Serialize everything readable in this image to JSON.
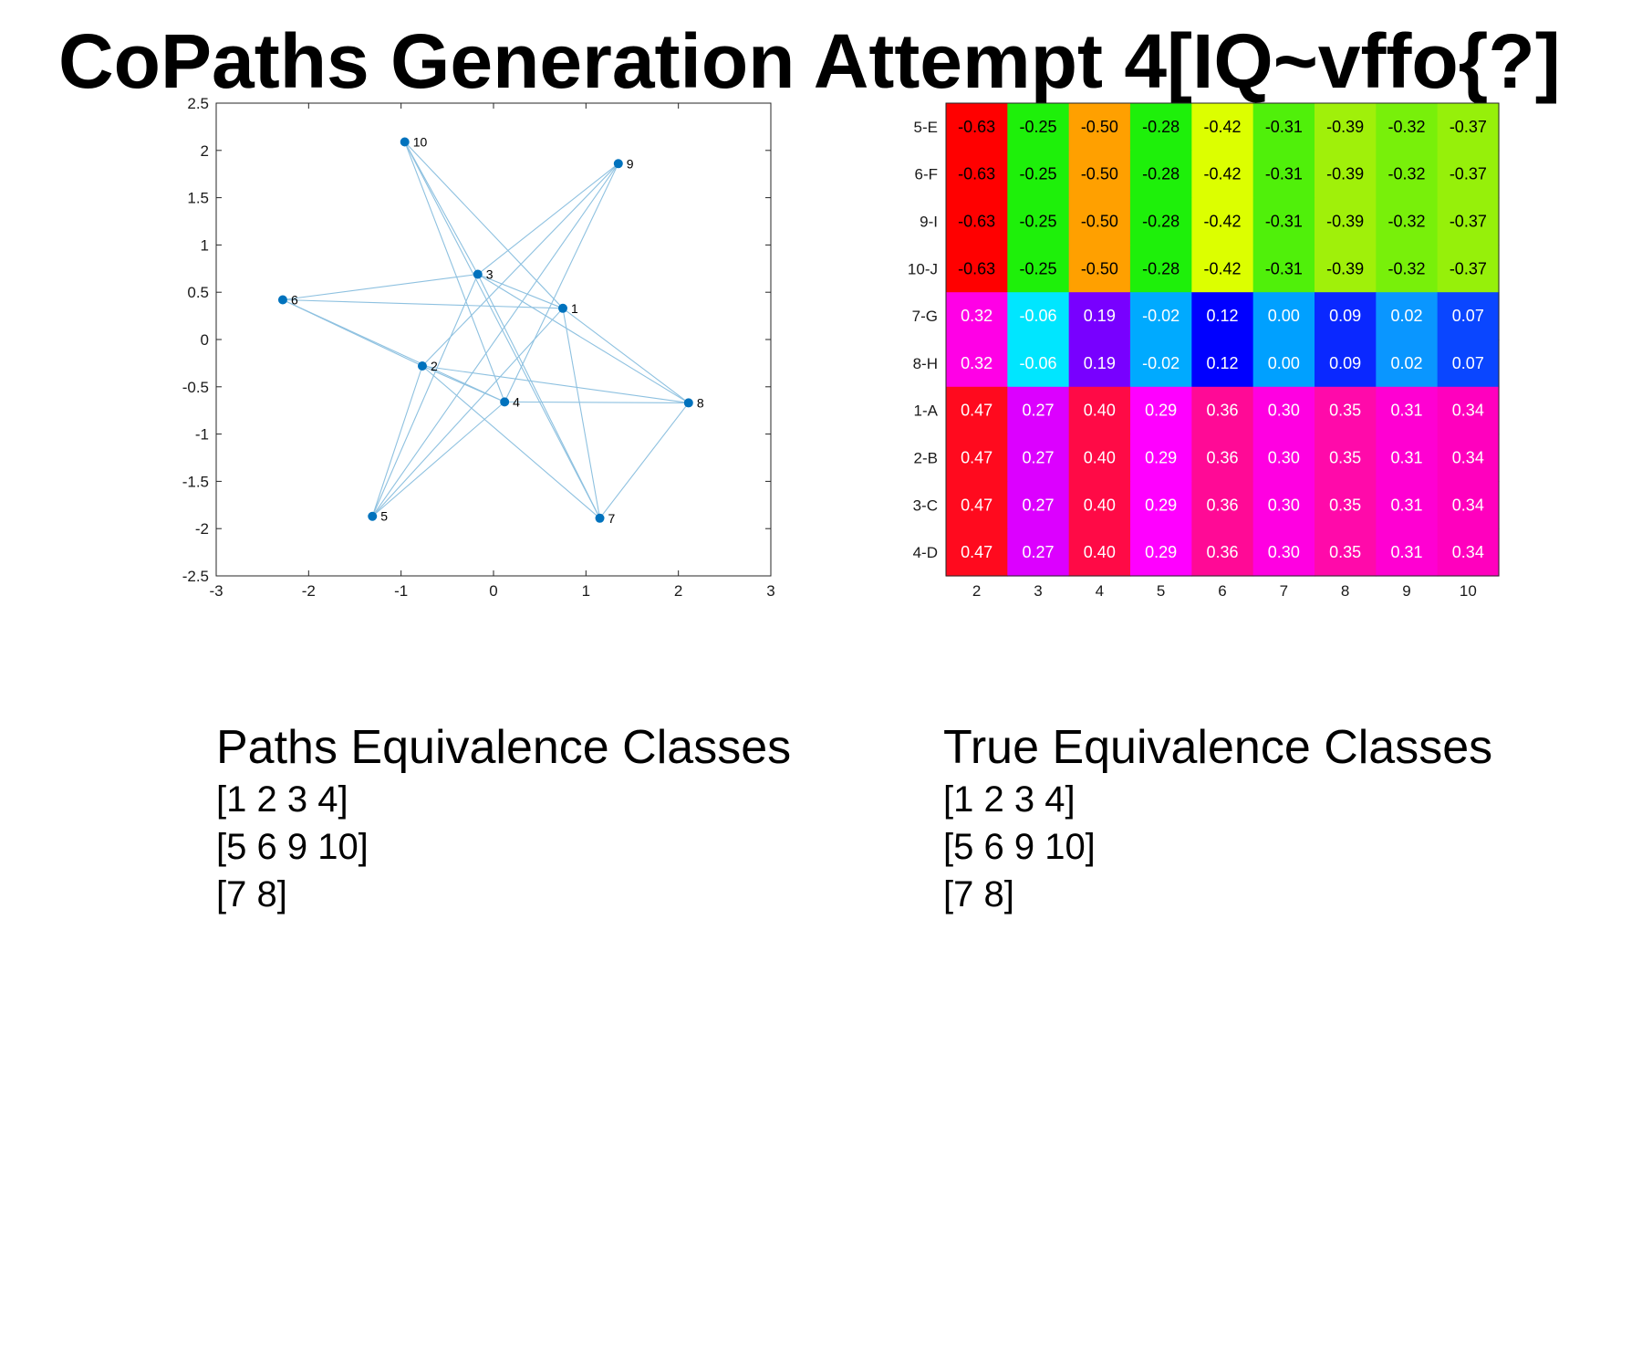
{
  "title": "CoPaths Generation Attempt 4[IQ~vffo{?]",
  "chart_data": [
    {
      "type": "scatter",
      "subtype": "graph",
      "xlim": [
        -3,
        3
      ],
      "ylim": [
        -2.5,
        2.5
      ],
      "xticks": [
        -3,
        -2,
        -1,
        0,
        1,
        2,
        3
      ],
      "yticks": [
        -2.5,
        -2,
        -1.5,
        -1,
        -0.5,
        0,
        0.5,
        1,
        1.5,
        2,
        2.5
      ],
      "node_color": "#0072BD",
      "edge_color": "#8EC1E0",
      "nodes": [
        {
          "id": "1",
          "x": 0.75,
          "y": 0.33
        },
        {
          "id": "2",
          "x": -0.77,
          "y": -0.28
        },
        {
          "id": "3",
          "x": -0.17,
          "y": 0.69
        },
        {
          "id": "4",
          "x": 0.12,
          "y": -0.66
        },
        {
          "id": "5",
          "x": -1.31,
          "y": -1.87
        },
        {
          "id": "6",
          "x": -2.28,
          "y": 0.42
        },
        {
          "id": "7",
          "x": 1.15,
          "y": -1.89
        },
        {
          "id": "8",
          "x": 2.11,
          "y": -0.67
        },
        {
          "id": "9",
          "x": 1.35,
          "y": 1.86
        },
        {
          "id": "10",
          "x": -0.96,
          "y": 2.09
        }
      ],
      "edges": [
        [
          "1",
          "3"
        ],
        [
          "1",
          "6"
        ],
        [
          "1",
          "10"
        ],
        [
          "1",
          "5"
        ],
        [
          "1",
          "8"
        ],
        [
          "1",
          "7"
        ],
        [
          "2",
          "6"
        ],
        [
          "2",
          "4"
        ],
        [
          "2",
          "5"
        ],
        [
          "2",
          "9"
        ],
        [
          "2",
          "8"
        ],
        [
          "2",
          "7"
        ],
        [
          "3",
          "6"
        ],
        [
          "3",
          "10"
        ],
        [
          "3",
          "9"
        ],
        [
          "3",
          "8"
        ],
        [
          "3",
          "7"
        ],
        [
          "3",
          "5"
        ],
        [
          "4",
          "6"
        ],
        [
          "4",
          "10"
        ],
        [
          "4",
          "8"
        ],
        [
          "4",
          "9"
        ],
        [
          "4",
          "5"
        ],
        [
          "7",
          "10"
        ],
        [
          "7",
          "8"
        ],
        [
          "9",
          "5"
        ]
      ]
    },
    {
      "type": "heatmap",
      "rows": [
        "5-E",
        "6-F",
        "9-I",
        "10-J",
        "7-G",
        "8-H",
        "1-A",
        "2-B",
        "3-C",
        "4-D"
      ],
      "columns": [
        "2",
        "3",
        "4",
        "5",
        "6",
        "7",
        "8",
        "9",
        "10"
      ],
      "values": [
        [
          -0.63,
          -0.25,
          -0.5,
          -0.28,
          -0.42,
          -0.31,
          -0.39,
          -0.32,
          -0.37
        ],
        [
          -0.63,
          -0.25,
          -0.5,
          -0.28,
          -0.42,
          -0.31,
          -0.39,
          -0.32,
          -0.37
        ],
        [
          -0.63,
          -0.25,
          -0.5,
          -0.28,
          -0.42,
          -0.31,
          -0.39,
          -0.32,
          -0.37
        ],
        [
          -0.63,
          -0.25,
          -0.5,
          -0.28,
          -0.42,
          -0.31,
          -0.39,
          -0.32,
          -0.37
        ],
        [
          0.32,
          -0.06,
          0.19,
          -0.02,
          0.12,
          0.0,
          0.09,
          0.02,
          0.07
        ],
        [
          0.32,
          -0.06,
          0.19,
          -0.02,
          0.12,
          0.0,
          0.09,
          0.02,
          0.07
        ],
        [
          0.47,
          0.27,
          0.4,
          0.29,
          0.36,
          0.3,
          0.35,
          0.31,
          0.34
        ],
        [
          0.47,
          0.27,
          0.4,
          0.29,
          0.36,
          0.3,
          0.35,
          0.31,
          0.34
        ],
        [
          0.47,
          0.27,
          0.4,
          0.29,
          0.36,
          0.3,
          0.35,
          0.31,
          0.34
        ],
        [
          0.47,
          0.27,
          0.4,
          0.29,
          0.36,
          0.3,
          0.35,
          0.31,
          0.34
        ]
      ],
      "cell_colors": [
        [
          "#FF0000",
          "#1EF00A",
          "#FFA000",
          "#1EF00A",
          "#DCFF00",
          "#50F00A",
          "#A0F00A",
          "#78F00A",
          "#96F00A"
        ],
        [
          "#FF0000",
          "#1EF00A",
          "#FFA000",
          "#1EF00A",
          "#DCFF00",
          "#50F00A",
          "#A0F00A",
          "#78F00A",
          "#96F00A"
        ],
        [
          "#FF0000",
          "#1EF00A",
          "#FFA000",
          "#1EF00A",
          "#DCFF00",
          "#50F00A",
          "#A0F00A",
          "#78F00A",
          "#96F00A"
        ],
        [
          "#FF0000",
          "#1EF00A",
          "#FFA000",
          "#1EF00A",
          "#DCFF00",
          "#50F00A",
          "#A0F00A",
          "#78F00A",
          "#96F00A"
        ],
        [
          "#FF00E6",
          "#00E6FF",
          "#7800FF",
          "#00AAFF",
          "#0000FF",
          "#00A0FF",
          "#0A28FF",
          "#0A96FF",
          "#0A46FF"
        ],
        [
          "#FF00E6",
          "#00E6FF",
          "#7800FF",
          "#00AAFF",
          "#0000FF",
          "#00A0FF",
          "#0A28FF",
          "#0A96FF",
          "#0A46FF"
        ],
        [
          "#FF0A1E",
          "#DC00FF",
          "#FF0A46",
          "#FF00FF",
          "#FF0A96",
          "#FF00E1",
          "#FF0AAA",
          "#FF00D2",
          "#FF00BE"
        ],
        [
          "#FF0A1E",
          "#DC00FF",
          "#FF0A46",
          "#FF00FF",
          "#FF0A96",
          "#FF00E1",
          "#FF0AAA",
          "#FF00D2",
          "#FF00BE"
        ],
        [
          "#FF0A1E",
          "#DC00FF",
          "#FF0A46",
          "#FF00FF",
          "#FF0A96",
          "#FF00E1",
          "#FF0AAA",
          "#FF00D2",
          "#FF00BE"
        ],
        [
          "#FF0A1E",
          "#DC00FF",
          "#FF0A46",
          "#FF00FF",
          "#FF0A96",
          "#FF00E1",
          "#FF0AAA",
          "#FF00D2",
          "#FF00BE"
        ]
      ],
      "label_colors": [
        "#000000",
        "#000000",
        "#000000",
        "#000000",
        "#ffffff",
        "#ffffff",
        "#ffffff",
        "#ffffff",
        "#ffffff",
        "#ffffff"
      ]
    }
  ],
  "paths_classes": {
    "title": "Paths Equivalence Classes",
    "lines": [
      "[1 2 3 4]",
      "[5 6 9 10]",
      "[7 8]"
    ]
  },
  "true_classes": {
    "title": "True Equivalence Classes",
    "lines": [
      "[1 2 3 4]",
      "[5 6 9 10]",
      "[7 8]"
    ]
  }
}
